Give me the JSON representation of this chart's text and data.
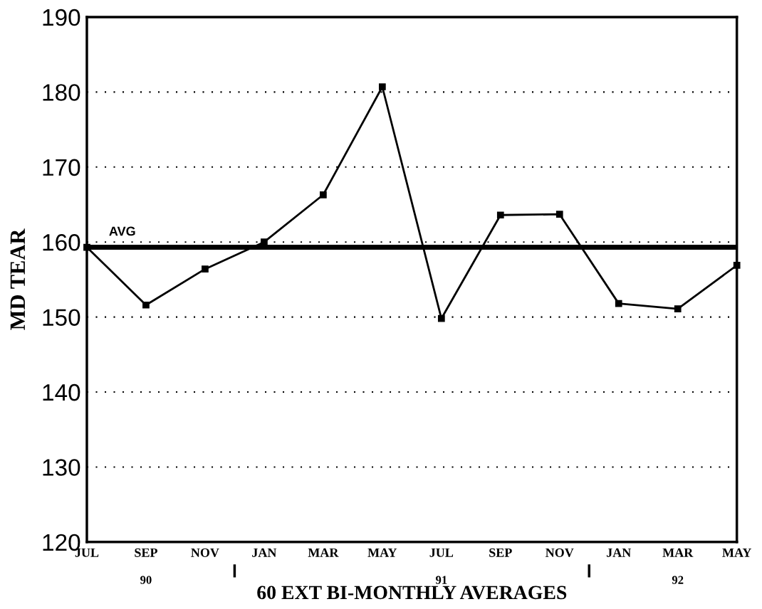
{
  "chart_data": {
    "type": "line",
    "xlabel": "60 EXT BI-MONTHLY AVERAGES",
    "ylabel": "MD TEAR",
    "categories": [
      "JUL",
      "SEP",
      "NOV",
      "JAN",
      "MAR",
      "MAY",
      "JUL",
      "SEP",
      "NOV",
      "JAN",
      "MAR",
      "MAY"
    ],
    "series": [
      {
        "color": "#000000",
        "values": [
          159.3,
          151.6,
          156.4,
          160.0,
          166.3,
          180.7,
          149.8,
          163.6,
          163.7,
          151.8,
          151.1,
          156.9
        ]
      }
    ],
    "ylim": [
      120,
      190
    ],
    "yticks": [
      120,
      130,
      140,
      150,
      160,
      170,
      180,
      190
    ],
    "ref_lines": [
      {
        "axis": "y",
        "value": 159.3,
        "label": "AVG",
        "color": "#000000"
      }
    ],
    "annotations": [
      "90",
      "91",
      "92"
    ],
    "grid": "y",
    "marker": "square",
    "line_style": "solid",
    "legend": false
  }
}
